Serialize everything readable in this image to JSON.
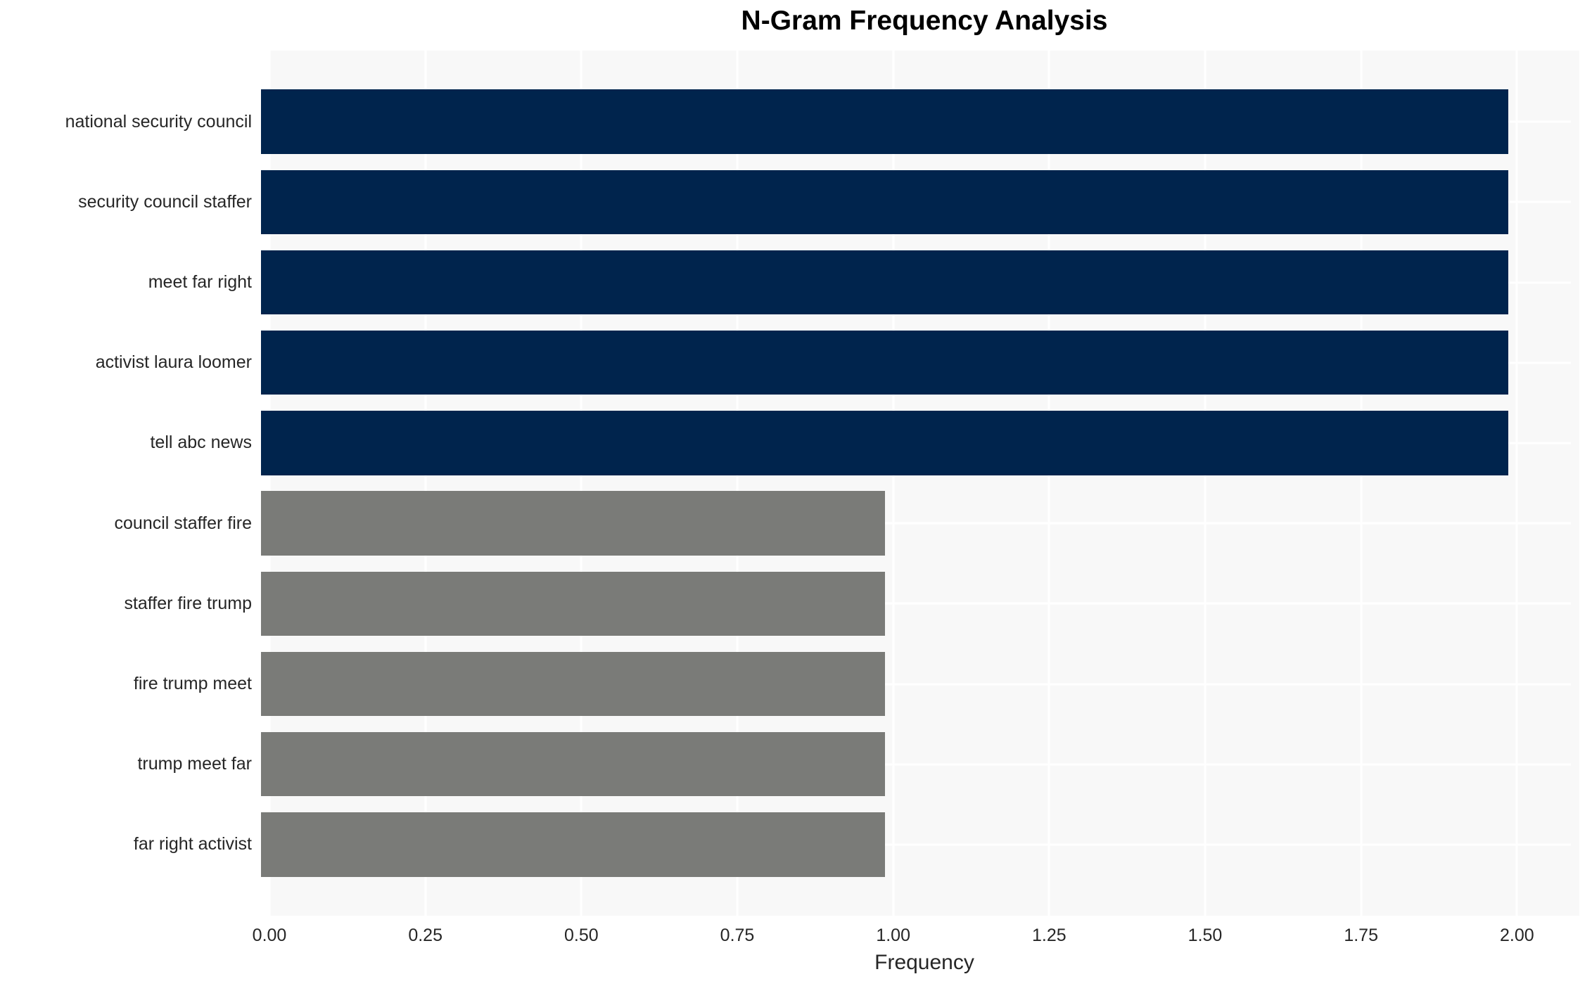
{
  "chart_data": {
    "type": "bar",
    "orientation": "horizontal",
    "title": "N-Gram Frequency Analysis",
    "xlabel": "Frequency",
    "ylabel": "",
    "categories": [
      "national security council",
      "security council staffer",
      "meet far right",
      "activist laura loomer",
      "tell abc news",
      "council staffer fire",
      "staffer fire trump",
      "fire trump meet",
      "trump meet far",
      "far right activist"
    ],
    "values": [
      2,
      2,
      2,
      2,
      2,
      1,
      1,
      1,
      1,
      1
    ],
    "bar_colors": [
      "#00244d",
      "#00244d",
      "#00244d",
      "#00244d",
      "#00244d",
      "#7a7b78",
      "#7a7b78",
      "#7a7b78",
      "#7a7b78",
      "#7a7b78"
    ],
    "xlim": [
      0,
      2.1
    ],
    "xticks": [
      {
        "value": 0.0,
        "label": "0.00"
      },
      {
        "value": 0.25,
        "label": "0.25"
      },
      {
        "value": 0.5,
        "label": "0.50"
      },
      {
        "value": 0.75,
        "label": "0.75"
      },
      {
        "value": 1.0,
        "label": "1.00"
      },
      {
        "value": 1.25,
        "label": "1.25"
      },
      {
        "value": 1.5,
        "label": "1.50"
      },
      {
        "value": 1.75,
        "label": "1.75"
      },
      {
        "value": 2.0,
        "label": "2.00"
      }
    ],
    "grid": "on",
    "legend": "none",
    "plot_background": "#f8f8f8",
    "grid_color": "#ffffff",
    "text_color": "#262626",
    "title_color": "#000000"
  }
}
